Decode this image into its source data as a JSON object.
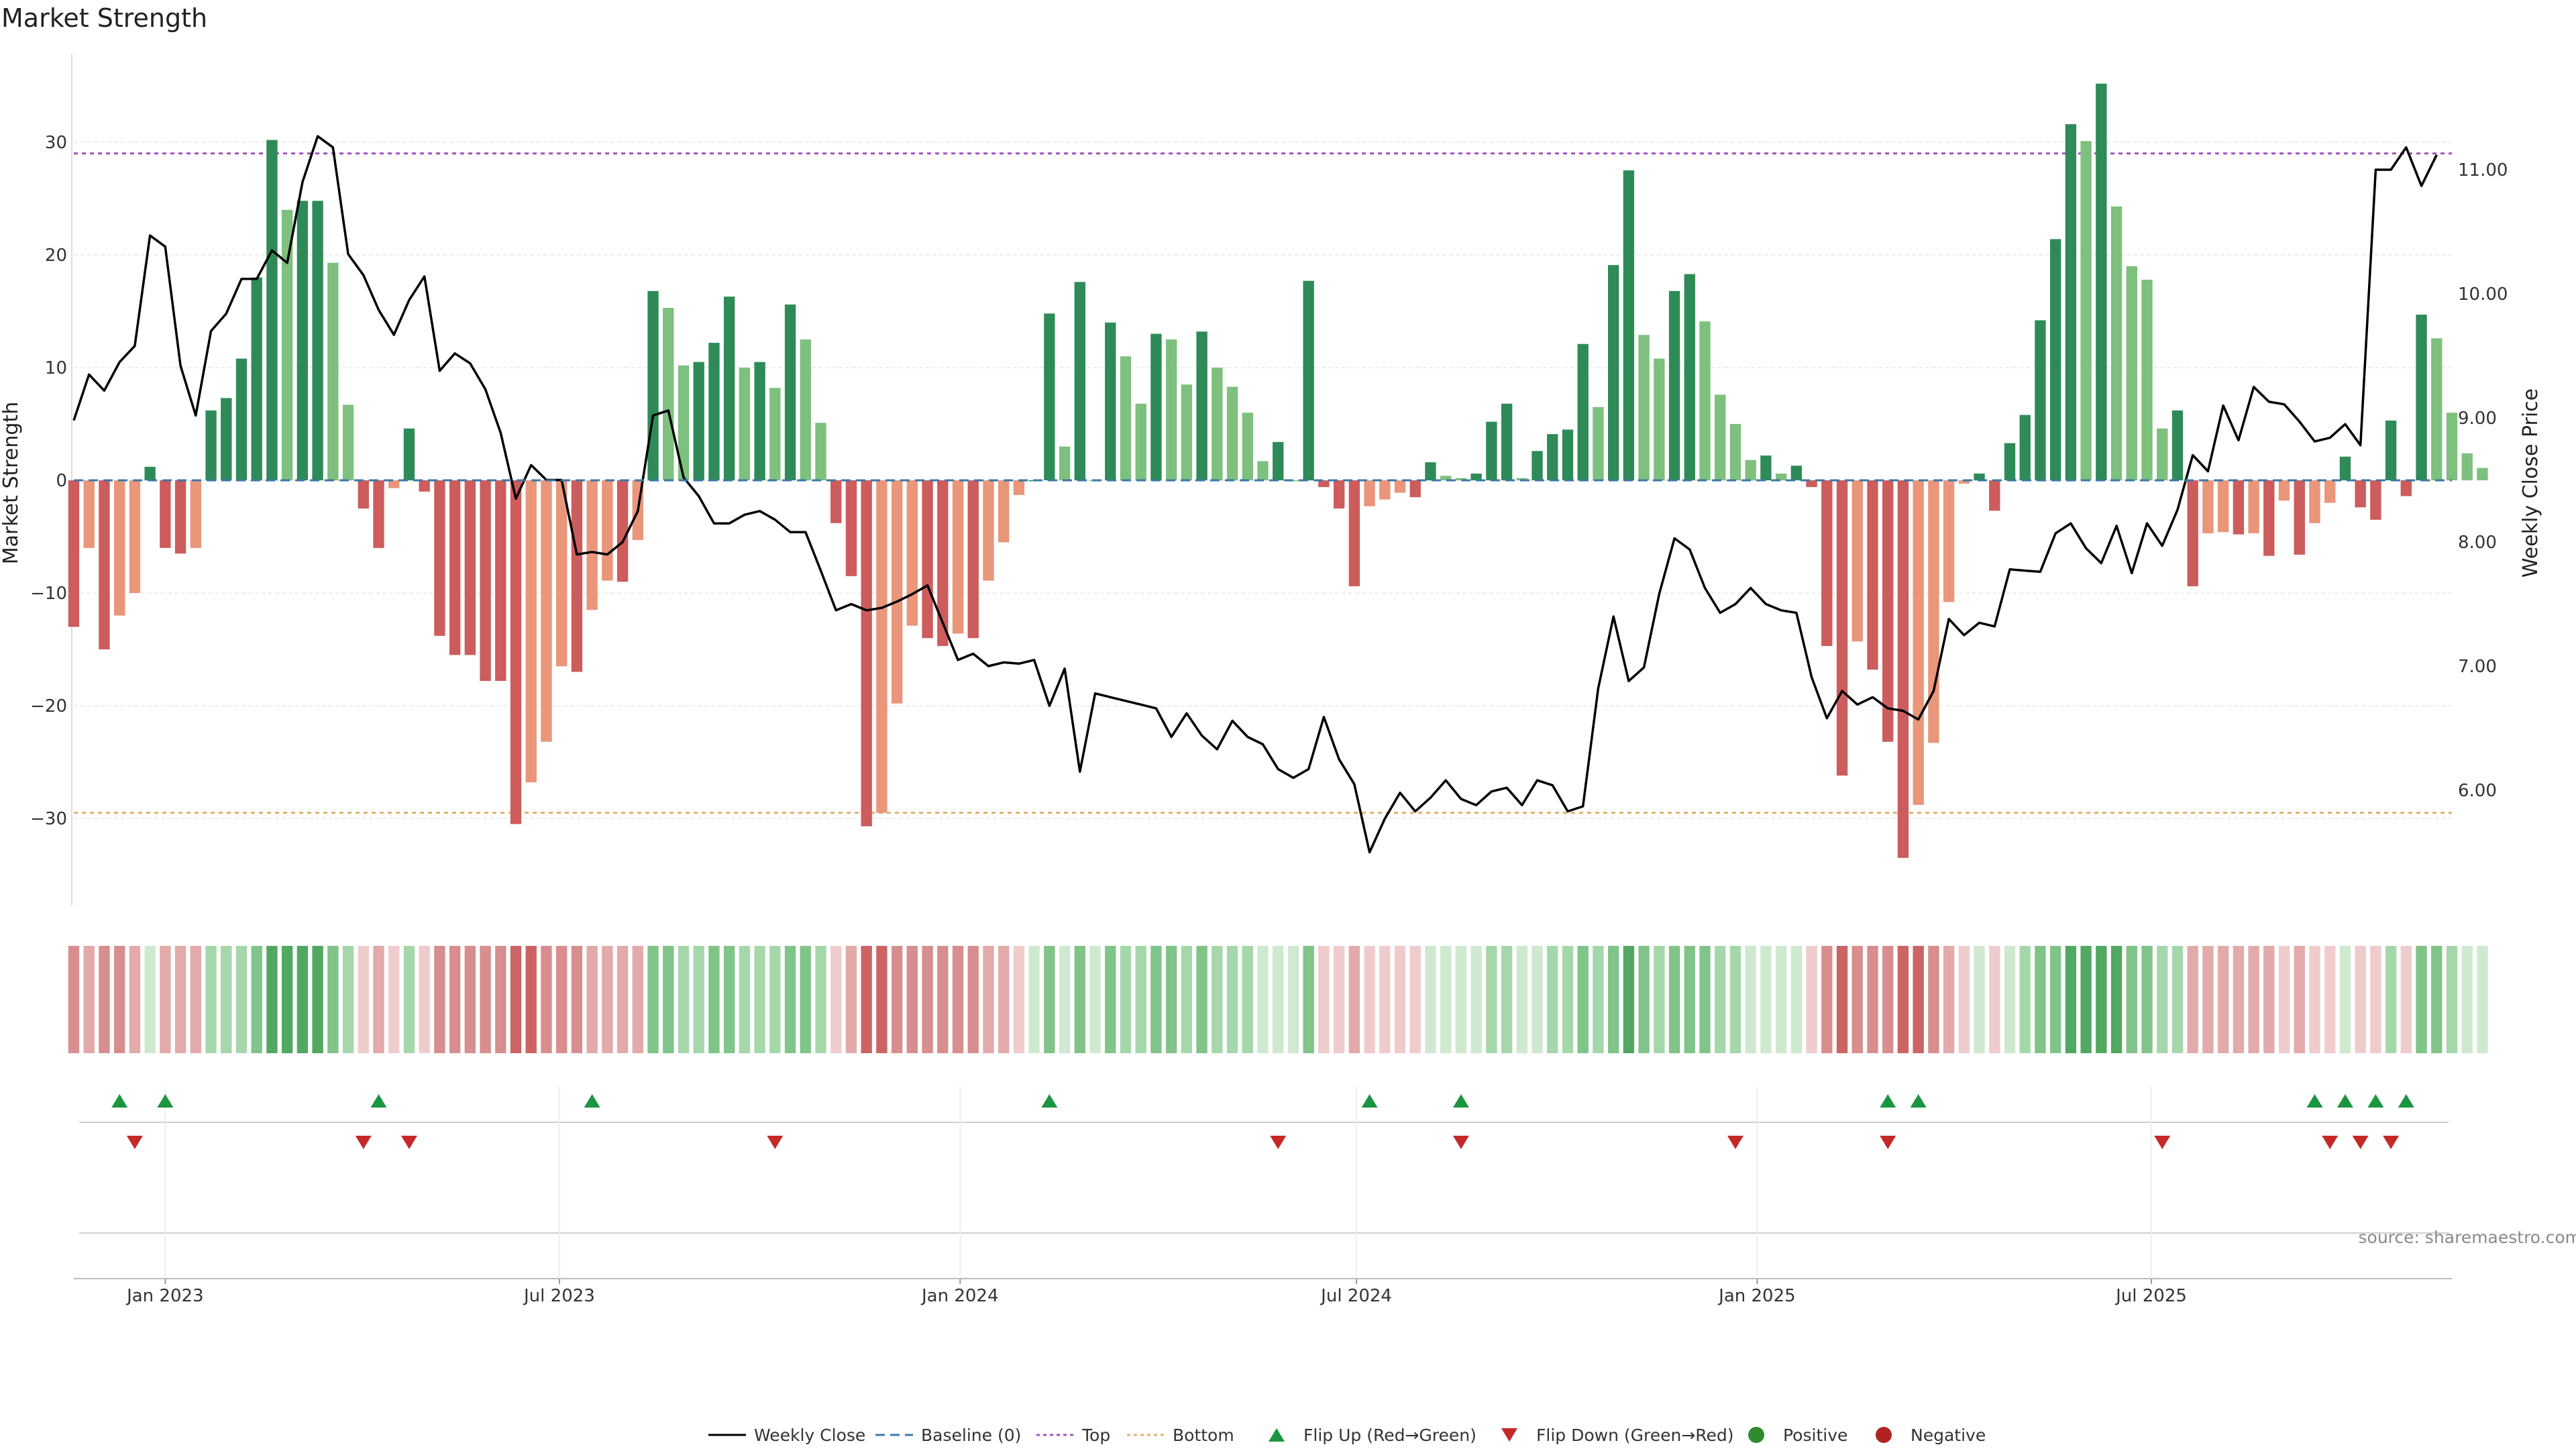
{
  "chart_data": {
    "type": "bar",
    "title": "Market Strength",
    "ylabel_left": "Market Strength",
    "ylabel_right": "Weekly Close Price",
    "source_text": "source: sharemaestro.com",
    "left_axis": {
      "min": -37.0,
      "max": 37.5,
      "ticks": [
        30,
        20,
        10,
        0,
        -10,
        -20,
        -30
      ],
      "tick_labels": [
        "30",
        "20",
        "10",
        "0",
        "−10",
        "−20",
        "−30"
      ]
    },
    "right_axis": {
      "min": 5.2,
      "max": 11.75,
      "ticks": [
        11,
        10,
        9,
        8,
        7,
        6
      ],
      "tick_labels": [
        "11.00",
        "10.00",
        "9.00",
        "8.00",
        "7.00",
        "6.00"
      ]
    },
    "x_axis": {
      "start": "2022-11-20",
      "end": "2025-11-16",
      "ticks": [
        {
          "date": "2023-01-01",
          "label": "Jan 2023"
        },
        {
          "date": "2023-07-01",
          "label": "Jul 2023"
        },
        {
          "date": "2024-01-01",
          "label": "Jan 2024"
        },
        {
          "date": "2024-07-01",
          "label": "Jul 2024"
        },
        {
          "date": "2025-01-01",
          "label": "Jan 2025"
        },
        {
          "date": "2025-07-01",
          "label": "Jul 2025"
        }
      ]
    },
    "reference_lines": {
      "top": 29,
      "bottom": -29.5,
      "baseline": 0
    },
    "colors": {
      "strong_pos": "#2e8b57",
      "weak_pos": "#7ec07e",
      "strong_neg": "#cd5c5c",
      "weak_neg": "#e9967a",
      "price_line": "#000000",
      "top_line": "#a050c0",
      "bottom_line": "#e0b070",
      "baseline": "#3a78a8",
      "flip_up": "#1a9641",
      "flip_down": "#c62828"
    },
    "series": [
      {
        "name": "Weekly Close",
        "type": "line",
        "start": "2022-11-20",
        "step_days": 7,
        "values": [
          8.98,
          9.35,
          9.22,
          9.45,
          9.58,
          10.47,
          10.38,
          9.42,
          9.02,
          9.7,
          9.84,
          10.12,
          10.12,
          10.35,
          10.25,
          10.9,
          11.27,
          11.18,
          10.32,
          10.15,
          9.87,
          9.67,
          9.95,
          10.14,
          9.38,
          9.52,
          9.44,
          9.23,
          8.88,
          8.35,
          8.62,
          8.5,
          8.5,
          7.9,
          7.92,
          7.9,
          8.0,
          8.25,
          9.02,
          9.06,
          8.52,
          8.37,
          8.15,
          8.15,
          8.22,
          8.25,
          8.18,
          8.08,
          8.08,
          7.77,
          7.45,
          7.5,
          7.45,
          7.47,
          7.52,
          7.58,
          7.65,
          7.35,
          7.05,
          7.1,
          7.0,
          7.03,
          7.02,
          7.05,
          6.68,
          6.98,
          6.15,
          6.78,
          6.75,
          6.72,
          6.69,
          6.66,
          6.43,
          6.62,
          6.44,
          6.33,
          6.56,
          6.43,
          6.37,
          6.17,
          6.1,
          6.17,
          6.59,
          6.25,
          6.05,
          5.5,
          5.77,
          5.98,
          5.83,
          5.94,
          6.08,
          5.93,
          5.88,
          5.99,
          6.02,
          5.88,
          6.08,
          6.04,
          5.83,
          5.87,
          6.82,
          7.4,
          6.88,
          6.99,
          7.58,
          8.03,
          7.94,
          7.63,
          7.43,
          7.5,
          7.63,
          7.5,
          7.45,
          7.43,
          6.91,
          6.58,
          6.8,
          6.69,
          6.75,
          6.66,
          6.64,
          6.57,
          6.8,
          7.38,
          7.25,
          7.35,
          7.32,
          7.78,
          7.77,
          7.76,
          8.07,
          8.15,
          7.95,
          7.83,
          8.13,
          7.75,
          8.15,
          7.97,
          8.26,
          8.7,
          8.57,
          9.1,
          8.82,
          9.25,
          9.13,
          9.11,
          8.97,
          8.81,
          8.84,
          8.95,
          8.78,
          11.0,
          11.0,
          11.18,
          10.87,
          11.12
        ]
      },
      {
        "name": "Market Strength",
        "type": "bar",
        "start": "2022-11-20",
        "step_days": 7,
        "values": [
          -13,
          -6,
          -15,
          -12,
          -10,
          1.2,
          -6,
          -6.5,
          -6,
          6.2,
          7.3,
          10.8,
          18,
          30.2,
          24,
          24.8,
          24.8,
          19.3,
          6.7,
          -2.5,
          -6,
          -0.7,
          4.6,
          -1,
          -13.8,
          -15.5,
          -15.5,
          -17.8,
          -17.8,
          -30.5,
          -26.8,
          -23.2,
          -16.5,
          -17,
          -11.5,
          -8.9,
          -9,
          -5.3,
          16.8,
          15.3,
          10.2,
          10.5,
          12.2,
          16.3,
          10,
          10.5,
          8.2,
          15.6,
          12.5,
          5.1,
          -3.8,
          -8.5,
          -30.7,
          -29.5,
          -19.8,
          -12.9,
          -14,
          -14.7,
          -13.6,
          -14,
          -8.9,
          -5.5,
          -1.3,
          0,
          14.8,
          3,
          17.6,
          0,
          14,
          11,
          6.8,
          13,
          12.5,
          8.5,
          13.2,
          10,
          8.3,
          6,
          1.7,
          3.4,
          0,
          17.7,
          -0.6,
          -2.5,
          -9.4,
          -2.3,
          -1.7,
          -1.1,
          -1.5,
          1.6,
          0.4,
          0.2,
          0.6,
          5.2,
          6.8,
          0.2,
          2.6,
          4.1,
          4.5,
          12.1,
          6.5,
          19.1,
          27.5,
          12.9,
          10.8,
          16.8,
          18.3,
          14.1,
          7.6,
          5,
          1.8,
          2.2,
          0.6,
          1.3,
          -0.6,
          -14.7,
          -26.2,
          -14.3,
          -16.8,
          -23.2,
          -33.5,
          -28.8,
          -23.3,
          -10.8,
          -0.3,
          0.6,
          -2.7,
          3.3,
          5.8,
          14.2,
          21.4,
          31.6,
          30.1,
          35.2,
          24.3,
          19,
          17.8,
          4.6,
          6.2,
          -9.4,
          -4.7,
          -4.6,
          -4.8,
          -4.7,
          -6.7,
          -1.8,
          -6.6,
          -3.8,
          -2,
          2.1,
          -2.4,
          -3.5,
          5.3,
          -1.4,
          14.7,
          12.6,
          6,
          2.4,
          1.1
        ]
      }
    ],
    "heat_strip": {
      "start": "2022-11-20",
      "step_days": 7,
      "categories": [
        "A",
        "A",
        "A",
        "B",
        "C",
        "D",
        "E",
        "F",
        "E",
        "D",
        "E",
        "D",
        "E",
        "A",
        "A",
        "A",
        "B",
        "C",
        "D",
        "E",
        "F",
        "E",
        "D",
        "E",
        "D",
        "E",
        "A",
        "A",
        "A",
        "B",
        "C",
        "D",
        "E",
        "F",
        "E",
        "D",
        "E",
        "D",
        "E",
        "A",
        "A",
        "A",
        "B",
        "C",
        "D",
        "E",
        "F",
        "E",
        "D",
        "E",
        "D",
        "E",
        "A",
        "A",
        "A",
        "B",
        "C",
        "D",
        "E",
        "F",
        "E",
        "D",
        "E",
        "D",
        "E",
        "A",
        "A",
        "A",
        "B",
        "C",
        "D",
        "E",
        "F",
        "E",
        "D",
        "E",
        "D",
        "E",
        "A",
        "A",
        "A",
        "B",
        "C",
        "D",
        "E",
        "F",
        "E",
        "D",
        "E",
        "D",
        "E",
        "A",
        "A",
        "A",
        "B",
        "C",
        "D",
        "E",
        "F",
        "E",
        "D",
        "E",
        "D",
        "E",
        "A",
        "A",
        "A",
        "B",
        "C",
        "D",
        "E",
        "F",
        "E",
        "D",
        "E",
        "D",
        "E",
        "A",
        "A",
        "A",
        "B",
        "C",
        "D",
        "E",
        "F",
        "E",
        "D",
        "E",
        "D",
        "E",
        "A",
        "A",
        "A",
        "B",
        "C",
        "D",
        "E",
        "F",
        "E",
        "D",
        "E",
        "D",
        "E",
        "A",
        "A",
        "A",
        "B",
        "C",
        "D",
        "E",
        "F",
        "E",
        "D",
        "E",
        "D",
        "E",
        "A",
        "A"
      ]
    },
    "flip_up_dates": [
      "2022-12-11",
      "2023-01-01",
      "2023-04-09",
      "2023-07-16",
      "2024-02-11",
      "2024-07-07",
      "2024-08-18",
      "2025-03-02",
      "2025-03-16",
      "2025-09-14",
      "2025-09-28",
      "2025-10-12",
      "2025-10-26"
    ],
    "flip_down_dates": [
      "2022-12-18",
      "2023-04-02",
      "2023-04-23",
      "2023-10-08",
      "2024-05-26",
      "2024-08-18",
      "2024-12-22",
      "2025-03-02",
      "2025-07-06",
      "2025-09-21",
      "2025-10-05",
      "2025-10-19"
    ],
    "legend": [
      {
        "label": "Weekly Close",
        "marker": "line-solid"
      },
      {
        "label": "Baseline (0)",
        "marker": "line-dashed-blue"
      },
      {
        "label": "Top",
        "marker": "line-dotted-purple"
      },
      {
        "label": "Bottom",
        "marker": "line-dotted-orange"
      },
      {
        "label": "Flip Up (Red→Green)",
        "marker": "triangle-up"
      },
      {
        "label": "Flip Down (Green→Red)",
        "marker": "triangle-down"
      },
      {
        "label": "Positive",
        "marker": "dot-green"
      },
      {
        "label": "Negative",
        "marker": "dot-red"
      }
    ]
  }
}
